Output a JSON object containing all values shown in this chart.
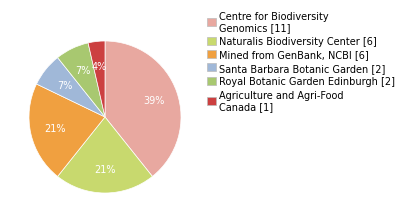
{
  "labels": [
    "Centre for Biodiversity\nGenomics [11]",
    "Naturalis Biodiversity Center [6]",
    "Mined from GenBank, NCBI [6]",
    "Santa Barbara Botanic Garden [2]",
    "Royal Botanic Garden Edinburgh [2]",
    "Agriculture and Agri-Food\nCanada [1]"
  ],
  "values": [
    11,
    6,
    6,
    2,
    2,
    1
  ],
  "colors": [
    "#e8a8a0",
    "#c8d96e",
    "#f0a040",
    "#a0b8d8",
    "#a8c870",
    "#cc4040"
  ],
  "background_color": "#ffffff",
  "autopct_fontsize": 7,
  "legend_fontsize": 7,
  "startangle": 90,
  "pctdistance": 0.68
}
